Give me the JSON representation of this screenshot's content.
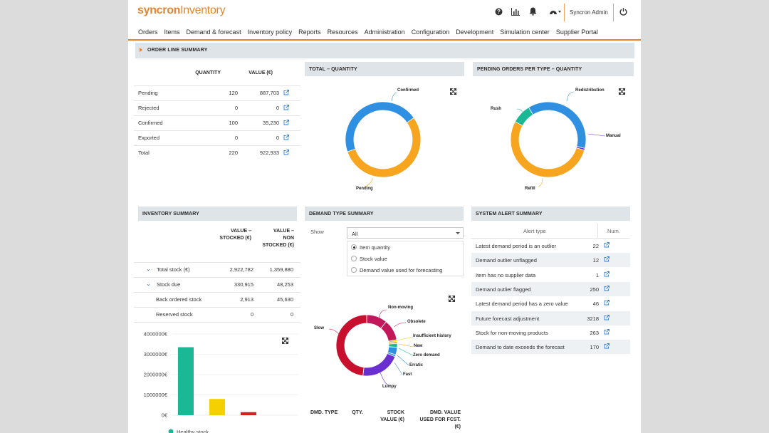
{
  "app": {
    "brand": "syncron",
    "product": "Inventory",
    "user": "Syncron Admin"
  },
  "icons": [
    "help-icon",
    "chart-icon",
    "bell-icon",
    "dashboard-icon",
    "power-icon"
  ],
  "nav": [
    "Orders",
    "Items",
    "Demand & forecast",
    "Inventory policy",
    "Reports",
    "Resources",
    "Administration",
    "Configuration",
    "Development",
    "Simulation center",
    "Supplier Portal"
  ],
  "section_title": "ORDER LINE SUMMARY",
  "order_lines": {
    "col_quantity": "QUANTITY",
    "col_value": "VALUE (€)",
    "rows": [
      {
        "label": "Pending",
        "qty": "120",
        "value": "887,703"
      },
      {
        "label": "Rejected",
        "qty": "0",
        "value": "0"
      },
      {
        "label": "Confirmed",
        "qty": "100",
        "value": "35,230"
      },
      {
        "label": "Exported",
        "qty": "0",
        "value": "0"
      },
      {
        "label": "Total",
        "qty": "220",
        "value": "922,933"
      }
    ]
  },
  "total_quantity": {
    "title": "TOTAL – QUANTITY",
    "labels": {
      "confirmed": "Confirmed",
      "pending": "Pending"
    }
  },
  "pending_orders": {
    "title": "PENDING ORDERS PER TYPE – QUANTITY",
    "labels": {
      "redistribution": "Redistribution",
      "rush": "Rush",
      "manual": "Manual",
      "refill": "Refill"
    }
  },
  "inventory_summary": {
    "title": "INVENTORY SUMMARY",
    "col_stocked": "VALUE – STOCKED (€)",
    "col_non_stocked": "VALUE – NON STOCKED (€)",
    "rows": [
      {
        "label": "Total stock (€)",
        "stocked": "2,922,782",
        "non_stocked": "1,359,880"
      },
      {
        "label": "Stock due",
        "stocked": "330,915",
        "non_stocked": "48,253"
      },
      {
        "label": "Back ordered stock",
        "stocked": "2,913",
        "non_stocked": "45,630"
      },
      {
        "label": "Reserved stock",
        "stocked": "0",
        "non_stocked": "0"
      }
    ],
    "legend_first": "Healthy stock"
  },
  "demand_type": {
    "title": "DEMAND TYPE SUMMARY",
    "show_label": "Show",
    "selected": "All",
    "options": [
      "Item quantity",
      "Stock value",
      "Demand value used for forecasting"
    ],
    "labels": {
      "non_moving": "Non-moving",
      "obsolete": "Obsolete",
      "insufficient": "Insufficient history",
      "new": "New",
      "zero": "Zero demand",
      "erratic": "Erratic",
      "fast": "Fast",
      "lumpy": "Lumpy",
      "slow": "Slow"
    },
    "table_headers": [
      "DMD. TYPE",
      "QTY.",
      "STOCK VALUE (€)",
      "DMD. VALUE USED FOR FCST. (€)"
    ]
  },
  "alerts": {
    "title": "SYSTEM ALERT SUMMARY",
    "col_type": "Alert type",
    "col_num": "Num.",
    "rows": [
      {
        "label": "Latest demand period is an outlier",
        "num": "22"
      },
      {
        "label": "Demand outlier unflagged",
        "num": "12"
      },
      {
        "label": "Item has no supplier data",
        "num": "1"
      },
      {
        "label": "Demand outlier flagged",
        "num": "250"
      },
      {
        "label": "Latest demand period has a zero value",
        "num": "46"
      },
      {
        "label": "Future forecast adjustment",
        "num": "3218"
      },
      {
        "label": "Stock for non-moving products",
        "num": "263"
      },
      {
        "label": "Demand to date exceeds the forecast",
        "num": "170"
      }
    ]
  },
  "colors": {
    "accent": "#e8832a",
    "blue": "#2f8fe0",
    "orange": "#f7a51e",
    "teal": "#1bb895",
    "purple": "#6a2fd0",
    "crimson": "#c8102e",
    "magenta": "#c2185b",
    "yellow": "#f5d000",
    "red": "#d02020"
  },
  "chart_data": [
    {
      "type": "pie",
      "title": "TOTAL – QUANTITY",
      "categories": [
        "Confirmed",
        "Pending"
      ],
      "values": [
        100,
        120
      ]
    },
    {
      "type": "pie",
      "title": "PENDING ORDERS PER TYPE – QUANTITY",
      "categories": [
        "Redistribution",
        "Manual",
        "Refill",
        "Rush"
      ],
      "values": [
        45,
        1,
        64,
        10
      ]
    },
    {
      "type": "pie",
      "title": "DEMAND TYPE SUMMARY",
      "categories": [
        "Non-moving",
        "Obsolete",
        "Insufficient history",
        "New",
        "Zero demand",
        "Erratic",
        "Fast",
        "Lumpy",
        "Slow"
      ],
      "values": [
        11,
        11,
        1,
        1,
        2,
        4,
        1,
        21,
        48
      ]
    },
    {
      "type": "bar",
      "title": "INVENTORY SUMMARY",
      "categories": [
        "Healthy stock",
        "",
        ""
      ],
      "values": [
        3350000,
        800000,
        150000
      ],
      "ylim": [
        0,
        4000000
      ],
      "yticks": [
        "4000000€",
        "3000000€",
        "2000000€",
        "1000000€",
        "0€"
      ]
    }
  ]
}
